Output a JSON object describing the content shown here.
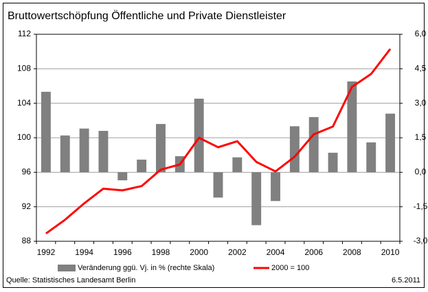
{
  "chart_data": {
    "type": "bar",
    "title": "Bruttowertschöpfung Öffentliche und Private Dienstleister",
    "categories": [
      "1992",
      null,
      "1994",
      null,
      "1996",
      null,
      "1998",
      null,
      "2000",
      null,
      "2002",
      null,
      "2004",
      null,
      "2006",
      null,
      "2008",
      null,
      "2010"
    ],
    "series": [
      {
        "name": "Veränderung ggü. Vj. in % (rechte Skala)",
        "type": "bar",
        "axis": "y2",
        "color": "#808080",
        "values": [
          3.5,
          1.6,
          1.9,
          1.8,
          -0.35,
          0.55,
          2.1,
          0.7,
          3.2,
          -1.1,
          0.65,
          -2.3,
          -1.25,
          2.0,
          2.4,
          0.85,
          3.95,
          1.3,
          2.55
        ]
      },
      {
        "name": "2000 = 100",
        "type": "line",
        "axis": "y",
        "color": "#ff0000",
        "values": [
          88.9,
          90.5,
          92.4,
          94.1,
          93.9,
          94.4,
          96.3,
          96.9,
          100,
          98.9,
          99.6,
          97.2,
          96.1,
          97.8,
          100.4,
          101.3,
          105.9,
          107.4,
          110.3
        ]
      }
    ],
    "ylim": [
      88,
      112
    ],
    "yticks": [
      88,
      92,
      96,
      100,
      104,
      108,
      112
    ],
    "y2lim": [
      -3,
      6
    ],
    "y2ticks": [
      {
        "value": -3,
        "label": "-3,0"
      },
      {
        "value": -1.5,
        "label": "-1,5"
      },
      {
        "value": 0,
        "label": "0,0"
      },
      {
        "value": 1.5,
        "label": "1,5"
      },
      {
        "value": 3,
        "label": "3,0"
      },
      {
        "value": 4.5,
        "label": "4,5"
      },
      {
        "value": 6,
        "label": "6,0"
      }
    ],
    "grid": true,
    "legend": "bottom",
    "source": "Quelle: Statistisches Landesamt Berlin",
    "date": "6.5.2011"
  }
}
